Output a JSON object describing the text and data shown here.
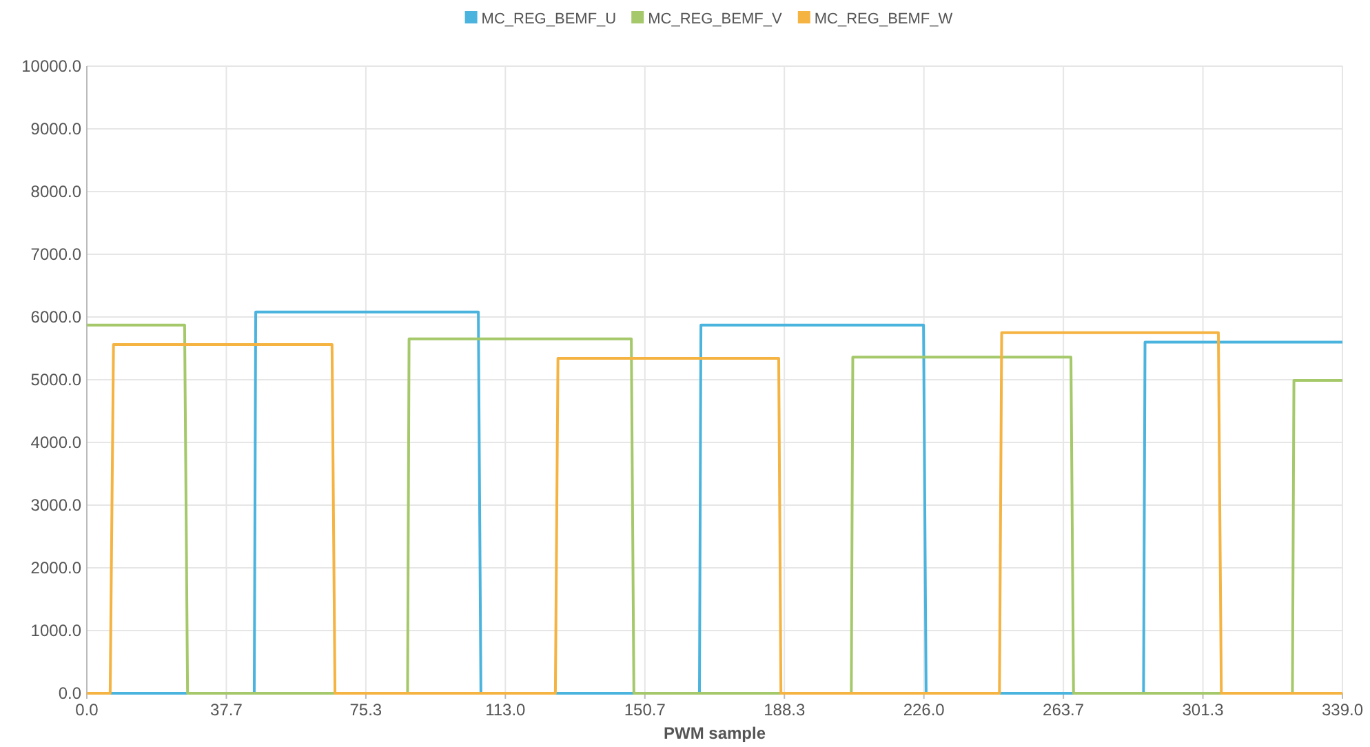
{
  "chart_data": {
    "type": "line",
    "xlabel": "PWM sample",
    "legend": "top",
    "grid": true,
    "marker": "none",
    "line_style": "solid",
    "xlim": [
      0,
      339
    ],
    "ylim": [
      0,
      10000
    ],
    "xticks": [
      {
        "value": 0,
        "label": "0.0"
      },
      {
        "value": 37.667,
        "label": "37.7"
      },
      {
        "value": 75.333,
        "label": "75.3"
      },
      {
        "value": 113,
        "label": "113.0"
      },
      {
        "value": 150.667,
        "label": "150.7"
      },
      {
        "value": 188.333,
        "label": "188.3"
      },
      {
        "value": 226,
        "label": "226.0"
      },
      {
        "value": 263.667,
        "label": "263.7"
      },
      {
        "value": 301.333,
        "label": "301.3"
      },
      {
        "value": 339,
        "label": "339.0"
      }
    ],
    "yticks": [
      {
        "value": 0,
        "label": "0.0"
      },
      {
        "value": 1000,
        "label": "1000.0"
      },
      {
        "value": 2000,
        "label": "2000.0"
      },
      {
        "value": 3000,
        "label": "3000.0"
      },
      {
        "value": 4000,
        "label": "4000.0"
      },
      {
        "value": 5000,
        "label": "5000.0"
      },
      {
        "value": 6000,
        "label": "6000.0"
      },
      {
        "value": 7000,
        "label": "7000.0"
      },
      {
        "value": 8000,
        "label": "8000.0"
      },
      {
        "value": 9000,
        "label": "9000.0"
      },
      {
        "value": 10000,
        "label": "10000.0"
      }
    ],
    "series": [
      {
        "name": "MC_REG_BEMF_U",
        "color": "#4bb4de",
        "x": [
          0,
          45.2,
          45.6,
          105.7,
          106.4,
          165.4,
          165.8,
          225.9,
          226.6,
          285.3,
          285.7,
          339
        ],
        "values": [
          0,
          0,
          6080,
          6080,
          0,
          0,
          5870,
          5870,
          0,
          0,
          5600,
          5600
        ]
      },
      {
        "name": "MC_REG_BEMF_V",
        "color": "#a5c96a",
        "x": [
          0,
          26.4,
          27.2,
          86.6,
          87,
          147,
          147.7,
          206.4,
          206.8,
          265.7,
          266.4,
          325.5,
          325.9,
          339
        ],
        "values": [
          5870,
          5870,
          0,
          0,
          5650,
          5650,
          0,
          0,
          5360,
          5360,
          0,
          0,
          4990,
          4990
        ]
      },
      {
        "name": "MC_REG_BEMF_W",
        "color": "#f5b342",
        "x": [
          0,
          6.3,
          7.2,
          66.2,
          67,
          126.5,
          127.2,
          186.8,
          187.4,
          246.4,
          247,
          305.5,
          306.3,
          339
        ],
        "values": [
          0,
          0,
          5560,
          5560,
          0,
          0,
          5340,
          5340,
          0,
          0,
          5750,
          5750,
          0,
          0
        ]
      }
    ]
  }
}
